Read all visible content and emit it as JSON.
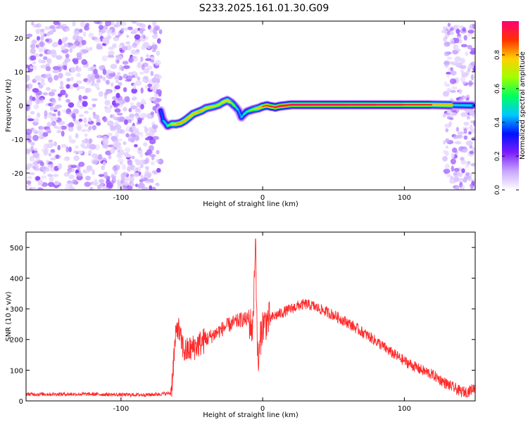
{
  "figure": {
    "title": "S233.2025.161.01.30.G09"
  },
  "chart_data": [
    {
      "type": "heatmap",
      "xlabel": "Height of straight line (km)",
      "ylabel": "Frequency (Hz)",
      "xlim": [
        -167,
        150
      ],
      "ylim": [
        -25,
        25
      ],
      "xticks": [
        -100,
        0,
        100
      ],
      "yticks": [
        -20,
        -10,
        0,
        10,
        20
      ],
      "grid": false,
      "noise_regions": [
        {
          "x_from": -167,
          "x_to": -72,
          "density": "high"
        },
        {
          "x_from": 128,
          "x_to": 150,
          "density": "medium"
        }
      ],
      "track": {
        "x": [
          -72,
          -70,
          -67,
          -64,
          -61,
          -58,
          -55,
          -52,
          -49,
          -46,
          -43,
          -40,
          -37,
          -34,
          -31,
          -28,
          -25,
          -22,
          -19,
          -17,
          -15,
          -13,
          -11,
          -9,
          -7,
          -5,
          -3,
          0,
          3,
          6,
          9,
          12,
          20,
          40,
          60,
          80,
          100,
          120,
          135,
          148
        ],
        "y": [
          -1.5,
          -4.5,
          -6.0,
          -5.5,
          -5.5,
          -5.2,
          -4.5,
          -3.5,
          -2.5,
          -2.0,
          -1.5,
          -0.8,
          -0.5,
          -0.2,
          0.2,
          1.0,
          1.5,
          0.8,
          -0.5,
          -1.5,
          -3.5,
          -2.5,
          -1.8,
          -1.5,
          -1.2,
          -1.0,
          -0.8,
          -0.3,
          0.0,
          -0.3,
          -0.5,
          -0.2,
          0.2,
          0.2,
          0.2,
          0.2,
          0.2,
          0.2,
          0.1,
          0.0
        ],
        "amplitude": [
          0.35,
          0.4,
          0.55,
          0.7,
          0.8,
          0.82,
          0.8,
          0.8,
          0.78,
          0.8,
          0.8,
          0.78,
          0.75,
          0.72,
          0.7,
          0.75,
          0.8,
          0.7,
          0.55,
          0.45,
          0.4,
          0.5,
          0.55,
          0.6,
          0.65,
          0.7,
          0.75,
          0.85,
          0.9,
          0.92,
          0.95,
          0.97,
          0.98,
          0.98,
          0.97,
          0.96,
          0.94,
          0.9,
          0.7,
          0.3
        ]
      },
      "colorbar": {
        "label": "Normalized spectral amplitude",
        "range": [
          0,
          1
        ],
        "ticks": [
          0.0,
          0.2,
          0.4,
          0.6,
          0.8
        ],
        "colormap": [
          "#ffffff",
          "#c8a6ff",
          "#7a1cff",
          "#0010ff",
          "#00c8ff",
          "#00ff60",
          "#a0ff00",
          "#ffd000",
          "#ff3000",
          "#ff0078"
        ]
      }
    },
    {
      "type": "line",
      "xlabel": "Height of straight line (km)",
      "ylabel": "SNR (10 * v/v)",
      "xlim": [
        -167,
        150
      ],
      "ylim": [
        0,
        550
      ],
      "xticks": [
        -100,
        0,
        100
      ],
      "yticks": [
        0,
        100,
        200,
        300,
        400,
        500
      ],
      "grid": false,
      "color": "#ff2a2a",
      "series": [
        {
          "x": [
            -167,
            -140,
            -120,
            -100,
            -80,
            -65,
            -64,
            -62,
            -60,
            -58,
            -55,
            -50,
            -45,
            -40,
            -35,
            -30,
            -25,
            -20,
            -15,
            -10,
            -7,
            -5,
            -4,
            -3,
            -1,
            0,
            3,
            6,
            10,
            15,
            20,
            25,
            30,
            35,
            40,
            45,
            50,
            60,
            70,
            80,
            90,
            100,
            110,
            120,
            130,
            140,
            145,
            150
          ],
          "y": [
            22,
            22,
            22,
            20,
            20,
            25,
            60,
            180,
            250,
            200,
            160,
            170,
            185,
            200,
            215,
            230,
            245,
            255,
            265,
            265,
            230,
            550,
            200,
            120,
            230,
            245,
            260,
            270,
            280,
            290,
            300,
            310,
            315,
            310,
            300,
            290,
            280,
            255,
            225,
            195,
            160,
            130,
            105,
            85,
            55,
            30,
            30,
            45
          ]
        }
      ],
      "annotations": [
        {
          "x": -5,
          "y": 550,
          "text": ""
        }
      ]
    }
  ]
}
